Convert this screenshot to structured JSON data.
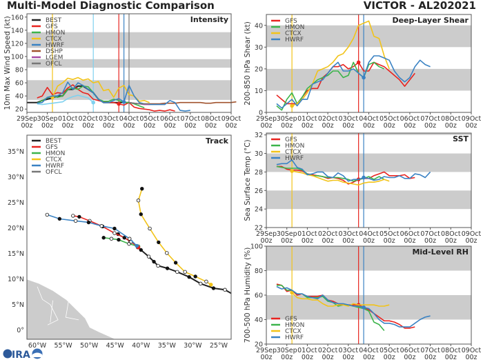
{
  "header": {
    "title": "Multi-Model Diagnostic Comparison",
    "storm": "VICTOR - AL202021",
    "logo": "CIRA"
  },
  "colors": {
    "BEST": "#222222",
    "GFS": "#e8231f",
    "HMON": "#3cb44b",
    "CTCX": "#f2c318",
    "HWRF": "#3a82c3",
    "DSHP": "#a0522d",
    "LGEM": "#a64ca6",
    "OFCL": "#777777",
    "unlabeled_cyan": "#7fd1ef",
    "band": "#cccccc",
    "land": "#cccccc"
  },
  "time_axis": {
    "range": [
      "2021-09-29T00Z",
      "2021-10-09T00Z"
    ],
    "tick_labels": [
      "29Sep",
      "30Sep",
      "01Oct",
      "02Oct",
      "03Oct",
      "04Oct",
      "05Oct",
      "06Oct",
      "07Oct",
      "08Oct",
      "09Oct"
    ],
    "tick_sublabel": "00z"
  },
  "chart_data": [
    {
      "type": "line",
      "title": "Intensity",
      "ylabel": "10m Max Wind Speed (kt)",
      "ylim": [
        15,
        165
      ],
      "yticks": [
        20,
        40,
        60,
        80,
        100,
        120,
        140,
        160
      ],
      "bands": [
        [
          34,
          64
        ],
        [
          83,
          96
        ],
        [
          113,
          137
        ]
      ],
      "legend": [
        "BEST",
        "GFS",
        "HMON",
        "CTCX",
        "HWRF",
        "DSHP",
        "LGEM",
        "OFCL"
      ],
      "legend_placement": "top-left",
      "vlines": [
        {
          "time": "2021-09-30T06Z",
          "color": "#f2c318"
        },
        {
          "time": "2021-10-02T06Z",
          "color": "#7fd1ef"
        },
        {
          "time": "2021-10-03T12Z",
          "color": "#e8231f"
        },
        {
          "time": "2021-10-03T18Z",
          "color": "#3a82c3"
        },
        {
          "time": "2021-10-04T00Z",
          "color": "#777777"
        }
      ],
      "series": [
        {
          "name": "DSHP",
          "start": "2021-10-04T00Z",
          "step_hours": 6,
          "values": [
            30,
            29,
            28,
            28,
            28,
            28,
            28,
            29,
            29,
            29,
            30,
            30,
            30,
            30,
            30,
            29,
            29,
            30,
            30,
            30,
            30,
            31
          ]
        },
        {
          "name": "unlabeled_cyan",
          "start": "2021-09-29T12Z",
          "step_hours": 6,
          "values": [
            28,
            27,
            28,
            29,
            30,
            31,
            36,
            39,
            41,
            39,
            37,
            30
          ],
          "marker": "2021-10-02T06Z"
        },
        {
          "name": "BEST",
          "start": "2021-09-29T00Z",
          "step_hours": 6,
          "values": [
            30,
            30,
            30,
            33,
            35,
            37,
            40,
            40,
            50,
            50,
            55,
            55,
            50,
            45,
            35,
            30,
            30,
            30,
            30,
            30,
            30
          ]
        },
        {
          "name": "GFS",
          "start": "2021-09-29T12Z",
          "step_hours": 6,
          "values": [
            37,
            40,
            53,
            42,
            45,
            44,
            52,
            57,
            50,
            45,
            43,
            35,
            33,
            31,
            30,
            30,
            28,
            26,
            30,
            23,
            21,
            20,
            19,
            17,
            18,
            17,
            19,
            17
          ],
          "marker": "2021-10-03T12Z"
        },
        {
          "name": "HMON",
          "start": "2021-09-29T12Z",
          "step_hours": 6,
          "values": [
            29,
            33,
            37,
            40,
            38,
            40,
            50,
            52,
            50,
            55,
            54,
            45,
            35,
            32,
            32,
            35,
            33,
            30,
            30,
            28,
            25,
            22
          ]
        },
        {
          "name": "CTCX",
          "start": "2021-09-30T06Z",
          "step_hours": 6,
          "values": [
            38,
            55,
            60,
            67,
            65,
            68,
            64,
            66,
            60,
            62,
            48,
            50,
            38,
            52,
            56,
            42,
            40,
            32,
            33,
            30
          ],
          "marker": "2021-09-30T06Z"
        },
        {
          "name": "HWRF",
          "start": "2021-09-29T12Z",
          "step_hours": 6,
          "values": [
            29,
            30,
            38,
            40,
            40,
            45,
            61,
            50,
            60,
            56,
            50,
            45,
            35,
            30,
            30,
            33,
            36,
            31,
            56,
            40,
            30,
            28,
            27,
            27,
            27,
            27,
            33,
            30,
            18,
            17,
            18
          ],
          "marker": "2021-10-03T18Z"
        },
        {
          "name": "LGEM",
          "start": "2021-10-04T00Z",
          "step_hours": 6,
          "values": [
            30,
            29,
            28,
            27,
            27
          ]
        },
        {
          "name": "OFCL",
          "start": "2021-10-04T00Z",
          "step_hours": 6,
          "values": [
            30,
            29,
            28,
            28,
            28
          ]
        }
      ]
    },
    {
      "type": "line",
      "title": "Deep-Layer Shear",
      "ylabel": "200-850 hPa Shear (kt)",
      "ylim": [
        0,
        45
      ],
      "yticks": [
        0,
        10,
        20,
        30,
        40
      ],
      "bands": [
        [
          10,
          20
        ],
        [
          30,
          40
        ]
      ],
      "legend": [
        "GFS",
        "HMON",
        "CTCX",
        "HWRF"
      ],
      "legend_placement": "top-left",
      "vlines": [
        {
          "time": "2021-09-30T06Z",
          "color": "#f2c318"
        },
        {
          "time": "2021-10-03T12Z",
          "color": "#e8231f"
        },
        {
          "time": "2021-10-03T18Z",
          "color": "#3a82c3"
        }
      ],
      "series": [
        {
          "name": "GFS",
          "start": "2021-09-29T12Z",
          "step_hours": 6,
          "values": [
            8,
            6,
            4,
            4,
            4,
            7,
            10,
            11,
            11,
            16,
            18,
            21,
            21,
            22,
            20,
            21,
            23,
            19,
            19,
            23,
            22,
            21,
            19,
            17,
            15,
            12,
            15,
            18
          ],
          "marker": "2021-10-03T12Z"
        },
        {
          "name": "HMON",
          "start": "2021-09-29T12Z",
          "step_hours": 6,
          "values": [
            3,
            1,
            6,
            9,
            4,
            7,
            11,
            13,
            15,
            16,
            17,
            19,
            19,
            16,
            17,
            23,
            18,
            16,
            22,
            23,
            21,
            20
          ]
        },
        {
          "name": "CTCX",
          "start": "2021-09-30T06Z",
          "step_hours": 6,
          "values": [
            3,
            4,
            6,
            9,
            13,
            19,
            20,
            21,
            23,
            26,
            27,
            30,
            34,
            40,
            41,
            42,
            35,
            34,
            26,
            20
          ],
          "marker": "2021-09-30T06Z"
        },
        {
          "name": "HWRF",
          "start": "2021-09-29T12Z",
          "step_hours": 6,
          "values": [
            4,
            2,
            4,
            6,
            3,
            6,
            6,
            13,
            14,
            15,
            18,
            21,
            23,
            19,
            19,
            20,
            18,
            16,
            23,
            26,
            26,
            25,
            24,
            19,
            16,
            14,
            16,
            21,
            24,
            22,
            21
          ],
          "marker": "2021-10-03T18Z"
        }
      ]
    },
    {
      "type": "line",
      "title": "SST",
      "ylabel": "Sea Surface Temp (°C)",
      "ylim": [
        22,
        32.2
      ],
      "yticks": [
        22,
        24,
        26,
        28,
        30,
        32
      ],
      "bands": [
        [
          24,
          26
        ],
        [
          28,
          30
        ],
        [
          32,
          32.2
        ]
      ],
      "legend": [
        "GFS",
        "HMON",
        "CTCX",
        "HWRF"
      ],
      "legend_placement": "top-left",
      "vlines": [
        {
          "time": "2021-09-30T06Z",
          "color": "#f2c318"
        },
        {
          "time": "2021-10-03T12Z",
          "color": "#e8231f"
        },
        {
          "time": "2021-10-03T18Z",
          "color": "#3a82c3"
        }
      ],
      "series": [
        {
          "name": "GFS",
          "start": "2021-09-29T12Z",
          "step_hours": 6,
          "values": [
            28.6,
            28.6,
            28.3,
            28.2,
            28.2,
            28.1,
            27.8,
            27.7,
            27.6,
            27.5,
            27.3,
            27.4,
            27.3,
            27.1,
            26.7,
            26.9,
            27.2,
            27.3,
            27.3,
            27.6,
            27.8,
            28.0,
            27.6,
            27.6,
            27.6,
            27.7,
            27.3,
            27.4
          ],
          "marker": "2021-10-03T12Z"
        },
        {
          "name": "HMON",
          "start": "2021-09-29T12Z",
          "step_hours": 6,
          "values": [
            28.6,
            28.5,
            28.4,
            28.4,
            28.4,
            28.2,
            27.8,
            27.6,
            27.6,
            27.5,
            27.4,
            27.4,
            27.4,
            27.3,
            27.2,
            27.0,
            27.2,
            27.3,
            27.5,
            27.2,
            27.5,
            27.2
          ]
        },
        {
          "name": "CTCX",
          "start": "2021-09-30T06Z",
          "step_hours": 6,
          "values": [
            28.1,
            28.0,
            27.9,
            27.7,
            27.6,
            27.4,
            27.2,
            27.0,
            27.1,
            27.1,
            26.9,
            26.8,
            26.7,
            26.6,
            26.8,
            26.9,
            26.9,
            27.0,
            27.2,
            27.0
          ],
          "marker": "2021-09-30T06Z"
        },
        {
          "name": "HWRF",
          "start": "2021-09-29T12Z",
          "step_hours": 6,
          "values": [
            28.8,
            28.9,
            28.9,
            29.3,
            28.5,
            28.3,
            27.7,
            27.8,
            28.0,
            28.0,
            27.5,
            27.4,
            27.9,
            27.6,
            27.0,
            27.2,
            27.2,
            27.4,
            27.3,
            27.1,
            27.2,
            27.5,
            27.4,
            27.4,
            27.6,
            27.3,
            27.3,
            27.8,
            27.7,
            27.4,
            28.0
          ],
          "marker": "2021-10-03T18Z"
        }
      ]
    },
    {
      "type": "line",
      "title": "Mid-Level RH",
      "ylabel": "700-500 hPa Humidity (%)",
      "ylim": [
        20,
        100
      ],
      "yticks": [
        20,
        40,
        60,
        80,
        100
      ],
      "bands": [
        [
          40,
          60
        ],
        [
          80,
          100
        ]
      ],
      "legend": [
        "GFS",
        "HMON",
        "CTCX",
        "HWRF"
      ],
      "legend_placement": "bottom-left",
      "vlines": [
        {
          "time": "2021-09-30T06Z",
          "color": "#f2c318"
        },
        {
          "time": "2021-10-03T12Z",
          "color": "#e8231f"
        },
        {
          "time": "2021-10-03T18Z",
          "color": "#3a82c3"
        }
      ],
      "series": [
        {
          "name": "GFS",
          "start": "2021-09-29T12Z",
          "step_hours": 6,
          "values": [
            69,
            68,
            63,
            64,
            60,
            61,
            59,
            59,
            59,
            60,
            56,
            55,
            53,
            52,
            52,
            52,
            52,
            50,
            48,
            45,
            42,
            39,
            39,
            38,
            36,
            33,
            33,
            34
          ],
          "marker": "2021-10-03T12Z"
        },
        {
          "name": "HMON",
          "start": "2021-09-29T12Z",
          "step_hours": 6,
          "values": [
            68,
            68,
            64,
            64,
            61,
            61,
            58,
            58,
            58,
            59,
            55,
            54,
            51,
            52,
            52,
            51,
            50,
            49,
            47,
            38,
            36,
            31
          ]
        },
        {
          "name": "CTCX",
          "start": "2021-09-30T06Z",
          "step_hours": 6,
          "values": [
            62,
            58,
            57,
            57,
            56,
            56,
            53,
            51,
            51,
            52,
            52,
            51,
            53,
            52,
            52,
            52,
            52,
            51,
            51,
            52
          ],
          "marker": "2021-09-30T06Z"
        },
        {
          "name": "HWRF",
          "start": "2021-09-29T12Z",
          "step_hours": 6,
          "values": [
            67,
            65,
            66,
            64,
            61,
            61,
            59,
            58,
            57,
            60,
            56,
            54,
            53,
            53,
            52,
            51,
            51,
            50,
            49,
            45,
            40,
            37,
            37,
            36,
            34,
            34,
            34,
            37,
            40,
            42,
            43
          ],
          "marker": "2021-10-03T18Z"
        }
      ]
    },
    {
      "type": "scatter",
      "title": "Track",
      "xlim": [
        -62.0,
        -22.6
      ],
      "ylim": [
        -1.8,
        38.2
      ],
      "xticks": [
        -60,
        -55,
        -50,
        -45,
        -40,
        -35,
        -30,
        -25
      ],
      "xtick_labels": [
        "60°W",
        "55°W",
        "50°W",
        "45°W",
        "40°W",
        "35°W",
        "30°W",
        "25°W"
      ],
      "yticks": [
        0,
        5,
        10,
        15,
        20,
        25,
        30,
        35
      ],
      "ytick_labels": [
        "0°",
        "5°N",
        "10°N",
        "15°N",
        "20°N",
        "25°N",
        "30°N",
        "35°N"
      ],
      "legend": [
        "BEST",
        "GFS",
        "HMON",
        "CTCX",
        "HWRF",
        "OFCL"
      ],
      "legend_placement": "top-left",
      "series": [
        {
          "name": "BEST",
          "lon": [
            -22.6,
            -23.8,
            -26.0,
            -28.5,
            -30.7,
            -33.0,
            -34.9,
            -36.7,
            -37.5,
            -38.5,
            -40.0,
            -40.6
          ],
          "lat": [
            7.2,
            7.9,
            8.2,
            9.1,
            10.4,
            11.4,
            12.1,
            12.6,
            13.4,
            14.4,
            15.7,
            16.2
          ]
        },
        {
          "name": "HMON",
          "lon": [
            -40.5,
            -42.3,
            -44.3,
            -45.7,
            -47.2
          ],
          "lat": [
            16.4,
            16.9,
            17.7,
            17.9,
            18.1
          ]
        },
        {
          "name": "OFCL",
          "lon": [
            -40.6,
            -42.1,
            -44.4
          ],
          "lat": [
            16.4,
            17.4,
            18.8
          ]
        },
        {
          "name": "GFS",
          "lon": [
            -40.5,
            -41.9,
            -43.2,
            -45.1,
            -47.4,
            -49.9,
            -51.9,
            -53.1
          ],
          "lat": [
            16.2,
            17.3,
            18.1,
            19.0,
            20.3,
            21.4,
            22.2,
            22.4
          ]
        },
        {
          "name": "HWRF",
          "lon": [
            -40.8,
            -42.2,
            -45.1,
            -47.6,
            -50.1,
            -52.6,
            -55.7,
            -58.1
          ],
          "lat": [
            16.5,
            17.9,
            19.9,
            20.4,
            21.1,
            21.4,
            21.8,
            22.6
          ]
        },
        {
          "name": "CTCX",
          "lon": [
            -26.5,
            -27.4,
            -29.5,
            -31.5,
            -33.3,
            -35.0,
            -36.6,
            -38.3,
            -40.0,
            -40.5,
            -39.8
          ],
          "lat": [
            8.9,
            9.5,
            10.5,
            11.4,
            13.2,
            15.1,
            17.2,
            19.9,
            22.7,
            25.4,
            27.7
          ]
        }
      ]
    }
  ]
}
